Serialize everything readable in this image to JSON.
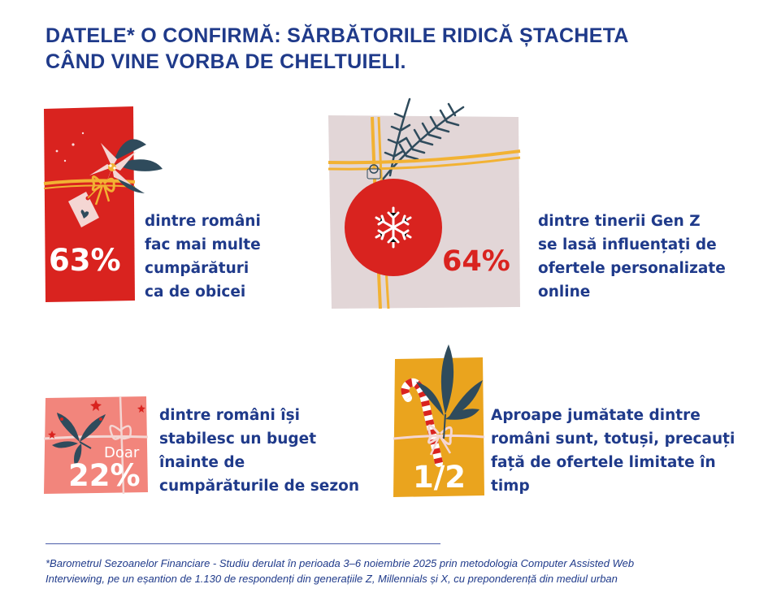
{
  "header": {
    "title_line1": "DATELE* O CONFIRMĂ: SĂRBĂTORILE RIDICĂ ȘTACHETA",
    "title_line2": "CÂND VINE VORBA DE CHELTUIELI."
  },
  "stats": [
    {
      "value": "63%",
      "lines": [
        "dintre români",
        "fac mai multe",
        "cumpărături",
        "ca de obicei"
      ],
      "color": "#d9231f"
    },
    {
      "value": "64%",
      "lines": [
        "dintre tinerii Gen Z",
        "se lasă influențați de",
        "ofertele personalizate",
        "online"
      ],
      "color": "#e2d6d7"
    },
    {
      "prefix": "Doar",
      "value": "22%",
      "lines": [
        "dintre români își",
        "stabilesc un buget",
        "înainte de",
        "cumpărăturile de sezon"
      ],
      "color": "#f2857c"
    },
    {
      "value": "1/2",
      "lines": [
        "Aproape jumătate dintre",
        "români sunt, totuși, precauți",
        "față de ofertele limitate în",
        "timp"
      ],
      "color": "#eaa41e"
    }
  ],
  "footnote": {
    "line1": "*Barometrul Sezoanelor Financiare - Studiu derulat în perioada 3–6 noiembrie 2025 prin metodologia Computer Assisted Web",
    "line2": "Interviewing, pe un eșantion de 1.130 de respondenți din generațiile Z, Millennials și X, cu preponderență din mediul urban"
  },
  "palette": {
    "navy": "#1f3a8a",
    "ribbon": "#f2b233",
    "leaf": "#2f4b5c",
    "red": "#d9231f"
  }
}
